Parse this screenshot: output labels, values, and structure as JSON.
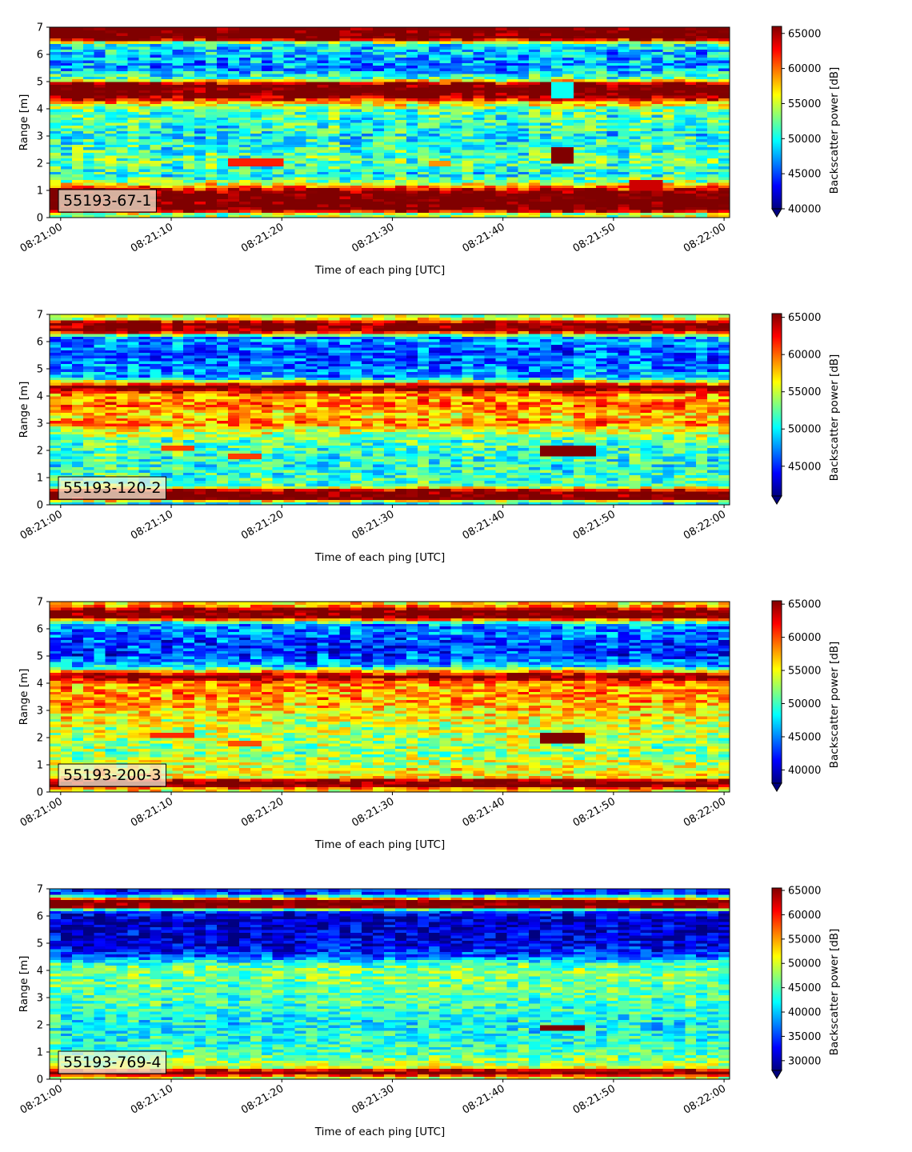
{
  "figure": {
    "colormap": "jet"
  },
  "chart_data": [
    {
      "type": "heatmap",
      "label": "55193-67-1",
      "xlabel": "Time of each ping [UTC]",
      "ylabel": "Range [m]",
      "colorbar_label": "Backscatter power [dB]",
      "x_ticks": [
        "08:21:00",
        "08:21:10",
        "08:21:20",
        "08:21:30",
        "08:21:40",
        "08:21:50",
        "08:22:00"
      ],
      "y_ticks": [
        0,
        1,
        2,
        3,
        4,
        5,
        6,
        7
      ],
      "xlim": [
        "08:20:59",
        "08:22:00.5"
      ],
      "ylim": [
        0,
        7
      ],
      "clim": [
        40000,
        66000
      ],
      "colorbar_ticks": [
        40000,
        45000,
        50000,
        55000,
        60000,
        65000
      ],
      "colorbar_extend": "min",
      "profile": [
        {
          "range": 0.15,
          "value": 54000
        },
        {
          "range": 0.3,
          "value": 68000
        },
        {
          "range": 0.9,
          "value": 68000
        },
        {
          "range": 1.1,
          "value": 62000
        },
        {
          "range": 1.3,
          "value": 54000
        },
        {
          "range": 1.6,
          "value": 50000
        },
        {
          "range": 2.0,
          "value": 52000
        },
        {
          "range": 2.5,
          "value": 51000
        },
        {
          "range": 3.0,
          "value": 50000
        },
        {
          "range": 3.5,
          "value": 51000
        },
        {
          "range": 4.0,
          "value": 52000
        },
        {
          "range": 4.25,
          "value": 58000
        },
        {
          "range": 4.5,
          "value": 68000
        },
        {
          "range": 4.9,
          "value": 68000
        },
        {
          "range": 5.1,
          "value": 52000
        },
        {
          "range": 5.5,
          "value": 47000
        },
        {
          "range": 6.0,
          "value": 48000
        },
        {
          "range": 6.4,
          "value": 50000
        },
        {
          "range": 6.6,
          "value": 68000
        },
        {
          "range": 7.0,
          "value": 68000
        }
      ],
      "noise": 4000,
      "features": [
        {
          "t0": 44.0,
          "t1": 46.5,
          "r0": 2.0,
          "r1": 2.6,
          "value": 67000
        },
        {
          "t0": 51.0,
          "t1": 54.0,
          "r0": 1.0,
          "r1": 1.35,
          "value": 64000
        },
        {
          "t0": 15.5,
          "t1": 20.0,
          "r0": 1.9,
          "r1": 2.2,
          "value": 62000
        },
        {
          "t0": 33.0,
          "t1": 35.5,
          "r0": 1.9,
          "r1": 2.1,
          "value": 59000
        },
        {
          "t0": 44.5,
          "t1": 46.5,
          "r0": 4.4,
          "r1": 5.0,
          "value": 50000
        }
      ]
    },
    {
      "type": "heatmap",
      "label": "55193-120-2",
      "xlabel": "Time of each ping [UTC]",
      "ylabel": "Range [m]",
      "colorbar_label": "Backscatter power [dB]",
      "x_ticks": [
        "08:21:00",
        "08:21:10",
        "08:21:20",
        "08:21:30",
        "08:21:40",
        "08:21:50",
        "08:22:00"
      ],
      "y_ticks": [
        0,
        1,
        2,
        3,
        4,
        5,
        6,
        7
      ],
      "xlim": [
        "08:20:59",
        "08:22:00.5"
      ],
      "ylim": [
        0,
        7
      ],
      "clim": [
        41000,
        65500
      ],
      "colorbar_ticks": [
        45000,
        50000,
        55000,
        60000,
        65000
      ],
      "colorbar_extend": "min",
      "profile": [
        {
          "range": 0.1,
          "value": 50000
        },
        {
          "range": 0.25,
          "value": 67000
        },
        {
          "range": 0.5,
          "value": 67000
        },
        {
          "range": 0.7,
          "value": 52000
        },
        {
          "range": 1.5,
          "value": 51000
        },
        {
          "range": 2.3,
          "value": 52000
        },
        {
          "range": 2.8,
          "value": 56000
        },
        {
          "range": 3.0,
          "value": 60000
        },
        {
          "range": 3.3,
          "value": 57000
        },
        {
          "range": 3.7,
          "value": 60000
        },
        {
          "range": 4.0,
          "value": 58000
        },
        {
          "range": 4.2,
          "value": 63000
        },
        {
          "range": 4.35,
          "value": 67000
        },
        {
          "range": 4.5,
          "value": 58000
        },
        {
          "range": 4.7,
          "value": 48000
        },
        {
          "range": 5.5,
          "value": 46000
        },
        {
          "range": 6.2,
          "value": 48000
        },
        {
          "range": 6.4,
          "value": 66000
        },
        {
          "range": 6.7,
          "value": 66000
        },
        {
          "range": 6.85,
          "value": 56000
        },
        {
          "range": 7.0,
          "value": 54000
        }
      ],
      "noise": 3500,
      "features": [
        {
          "t0": 43.5,
          "t1": 48.5,
          "r0": 1.8,
          "r1": 2.15,
          "value": 67000
        },
        {
          "t0": 15.0,
          "t1": 18.5,
          "r0": 1.75,
          "r1": 1.85,
          "value": 61000
        },
        {
          "t0": 9.5,
          "t1": 12.5,
          "r0": 2.0,
          "r1": 2.2,
          "value": 61000
        }
      ]
    },
    {
      "type": "heatmap",
      "label": "55193-200-3",
      "xlabel": "Time of each ping [UTC]",
      "ylabel": "Range [m]",
      "colorbar_label": "Backscatter power [dB]",
      "x_ticks": [
        "08:21:00",
        "08:21:10",
        "08:21:20",
        "08:21:30",
        "08:21:40",
        "08:21:50",
        "08:22:00"
      ],
      "y_ticks": [
        0,
        1,
        2,
        3,
        4,
        5,
        6,
        7
      ],
      "xlim": [
        "08:20:59",
        "08:22:00.5"
      ],
      "ylim": [
        0,
        7
      ],
      "clim": [
        38000,
        65500
      ],
      "colorbar_ticks": [
        40000,
        45000,
        50000,
        55000,
        60000,
        65000
      ],
      "colorbar_extend": "min",
      "profile": [
        {
          "range": 0.1,
          "value": 55000
        },
        {
          "range": 0.25,
          "value": 67000
        },
        {
          "range": 0.4,
          "value": 67000
        },
        {
          "range": 0.55,
          "value": 56000
        },
        {
          "range": 1.5,
          "value": 52000
        },
        {
          "range": 2.5,
          "value": 54000
        },
        {
          "range": 3.0,
          "value": 56000
        },
        {
          "range": 3.5,
          "value": 58000
        },
        {
          "range": 4.0,
          "value": 58000
        },
        {
          "range": 4.25,
          "value": 66000
        },
        {
          "range": 4.4,
          "value": 60000
        },
        {
          "range": 4.6,
          "value": 48000
        },
        {
          "range": 5.0,
          "value": 43000
        },
        {
          "range": 5.5,
          "value": 43000
        },
        {
          "range": 6.2,
          "value": 46000
        },
        {
          "range": 6.45,
          "value": 67000
        },
        {
          "range": 6.7,
          "value": 67000
        },
        {
          "range": 6.85,
          "value": 58000
        },
        {
          "range": 7.0,
          "value": 55000
        }
      ],
      "noise": 4000,
      "features": [
        {
          "t0": 43.5,
          "t1": 47.5,
          "r0": 1.8,
          "r1": 2.2,
          "value": 67000
        },
        {
          "t0": 8.0,
          "t1": 12.5,
          "r0": 2.0,
          "r1": 2.15,
          "value": 61000
        },
        {
          "t0": 15.0,
          "t1": 18.5,
          "r0": 1.75,
          "r1": 1.85,
          "value": 60000
        }
      ]
    },
    {
      "type": "heatmap",
      "label": "55193-769-4",
      "xlabel": "Time of each ping [UTC]",
      "ylabel": "Range [m]",
      "colorbar_label": "Backscatter power [dB]",
      "x_ticks": [
        "08:21:00",
        "08:21:10",
        "08:21:20",
        "08:21:30",
        "08:21:40",
        "08:21:50",
        "08:22:00"
      ],
      "y_ticks": [
        0,
        1,
        2,
        3,
        4,
        5,
        6,
        7
      ],
      "xlim": [
        "08:20:59",
        "08:22:00.5"
      ],
      "ylim": [
        0,
        7
      ],
      "clim": [
        28000,
        65500
      ],
      "colorbar_ticks": [
        30000,
        35000,
        40000,
        45000,
        50000,
        55000,
        60000,
        65000
      ],
      "colorbar_extend": "min",
      "profile": [
        {
          "range": 0.1,
          "value": 50000
        },
        {
          "range": 0.2,
          "value": 67000
        },
        {
          "range": 0.3,
          "value": 67000
        },
        {
          "range": 0.45,
          "value": 50000
        },
        {
          "range": 1.0,
          "value": 44000
        },
        {
          "range": 2.0,
          "value": 42000
        },
        {
          "range": 3.0,
          "value": 45000
        },
        {
          "range": 4.0,
          "value": 47000
        },
        {
          "range": 4.3,
          "value": 44000
        },
        {
          "range": 4.5,
          "value": 36000
        },
        {
          "range": 5.0,
          "value": 32000
        },
        {
          "range": 5.8,
          "value": 30000
        },
        {
          "range": 6.2,
          "value": 34000
        },
        {
          "range": 6.35,
          "value": 67000
        },
        {
          "range": 6.55,
          "value": 67000
        },
        {
          "range": 6.7,
          "value": 50000
        },
        {
          "range": 6.8,
          "value": 36000
        },
        {
          "range": 7.0,
          "value": 33000
        }
      ],
      "noise": 4500,
      "features": [
        {
          "t0": 43.5,
          "t1": 47.5,
          "r0": 1.85,
          "r1": 2.0,
          "value": 66000
        }
      ]
    }
  ]
}
